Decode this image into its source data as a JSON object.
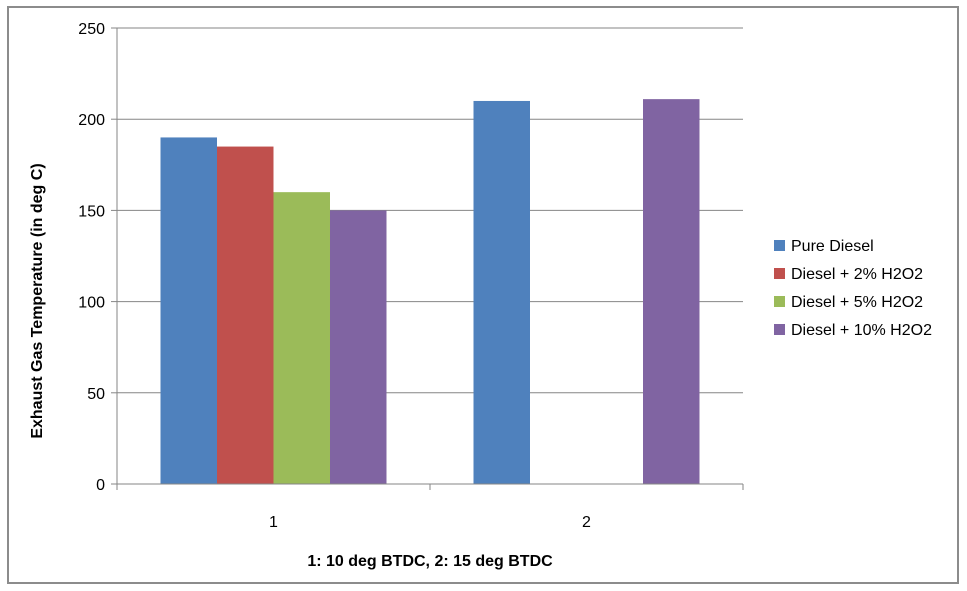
{
  "chart_data": {
    "type": "bar",
    "title": "",
    "xlabel": "1: 10 deg BTDC, 2: 15 deg BTDC",
    "ylabel": "Exhaust Gas Temperature (in deg C)",
    "categories": [
      "1",
      "2"
    ],
    "ylim": [
      0,
      250
    ],
    "yticks": [
      0,
      50,
      100,
      150,
      200,
      250
    ],
    "grid": true,
    "legend_position": "right",
    "series": [
      {
        "name": "Pure Diesel",
        "color": "#4F81BD",
        "values": [
          190,
          210
        ]
      },
      {
        "name": "Diesel + 2% H2O2",
        "color": "#C0504D",
        "values": [
          185,
          0
        ]
      },
      {
        "name": "Diesel + 5% H2O2",
        "color": "#9BBB59",
        "values": [
          160,
          0
        ]
      },
      {
        "name": "Diesel + 10% H2O2",
        "color": "#8064A2",
        "values": [
          150,
          211
        ]
      }
    ]
  }
}
